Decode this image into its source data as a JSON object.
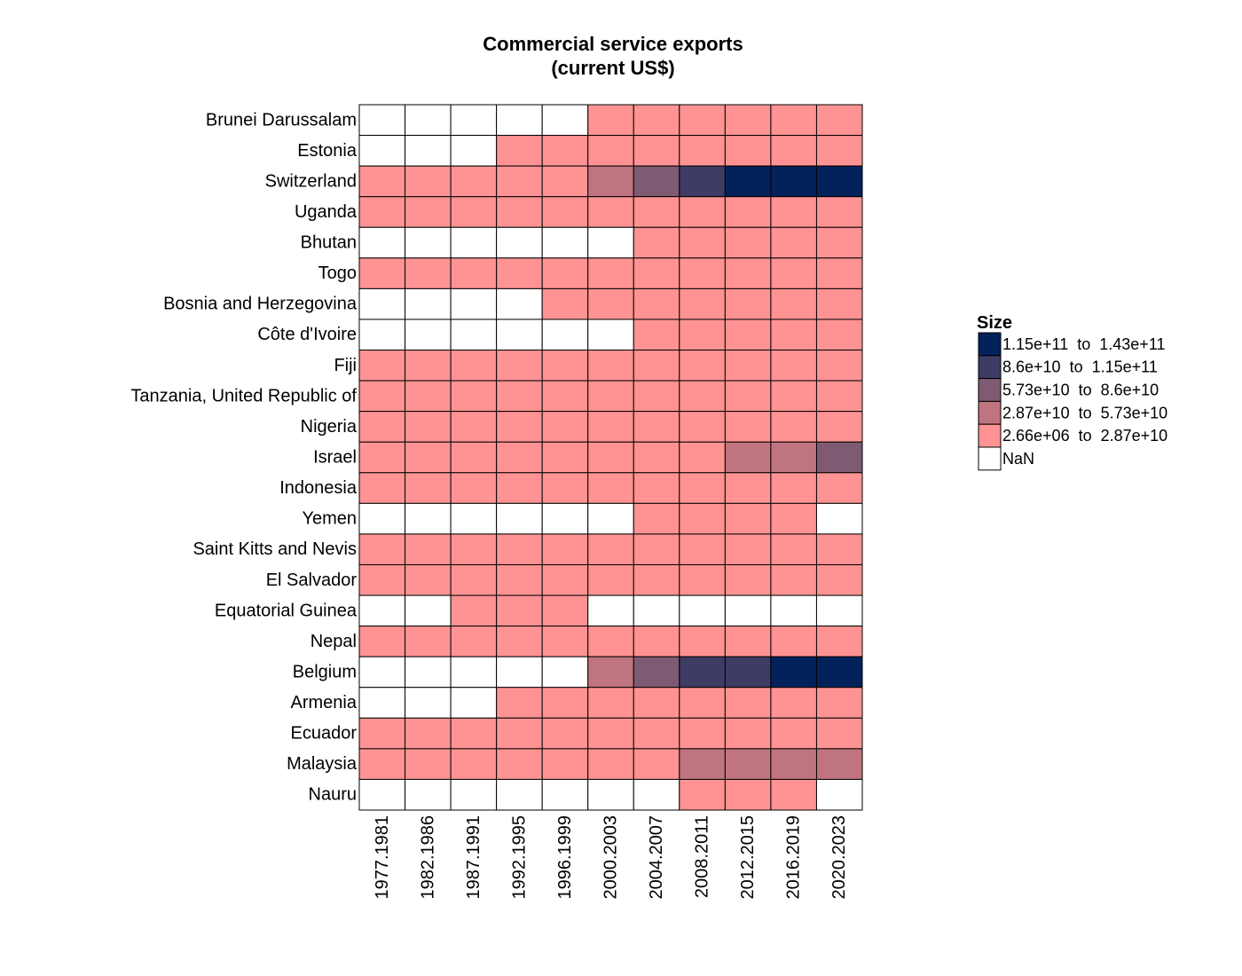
{
  "chart_data": {
    "type": "heatmap",
    "title": "Commercial service exports",
    "subtitle": "(current US$)",
    "rows": [
      "Brunei Darussalam",
      "Estonia",
      "Switzerland",
      "Uganda",
      "Bhutan",
      "Togo",
      "Bosnia and Herzegovina",
      "Côte d'Ivoire",
      "Fiji",
      "Tanzania, United Republic of",
      "Nigeria",
      "Israel",
      "Indonesia",
      "Yemen",
      "Saint Kitts and Nevis",
      "El Salvador",
      "Equatorial Guinea",
      "Nepal",
      "Belgium",
      "Armenia",
      "Ecuador",
      "Malaysia",
      "Nauru"
    ],
    "columns": [
      "1977.1981",
      "1982.1986",
      "1987.1991",
      "1992.1995",
      "1996.1999",
      "2000.2003",
      "2004.2007",
      "2008.2011",
      "2012.2015",
      "2016.2019",
      "2020.2023"
    ],
    "bin_index_note": "0 = 2.66e+06 to 2.87e+10, 1 = 2.87e+10 to 5.73e+10, 2 = 5.73e+10 to 8.6e+10, 3 = 8.6e+10 to 1.15e+11, 4 = 1.15e+11 to 1.43e+11, null = NaN",
    "cells": [
      [
        null,
        null,
        null,
        null,
        null,
        0,
        0,
        0,
        0,
        0,
        0
      ],
      [
        null,
        null,
        null,
        0,
        0,
        0,
        0,
        0,
        0,
        0,
        0
      ],
      [
        0,
        0,
        0,
        0,
        0,
        1,
        2,
        3,
        4,
        4,
        4
      ],
      [
        0,
        0,
        0,
        0,
        0,
        0,
        0,
        0,
        0,
        0,
        0
      ],
      [
        null,
        null,
        null,
        null,
        null,
        null,
        0,
        0,
        0,
        0,
        0
      ],
      [
        0,
        0,
        0,
        0,
        0,
        0,
        0,
        0,
        0,
        0,
        0
      ],
      [
        null,
        null,
        null,
        null,
        0,
        0,
        0,
        0,
        0,
        0,
        0
      ],
      [
        null,
        null,
        null,
        null,
        null,
        null,
        0,
        0,
        0,
        0,
        0
      ],
      [
        0,
        0,
        0,
        0,
        0,
        0,
        0,
        0,
        0,
        0,
        0
      ],
      [
        0,
        0,
        0,
        0,
        0,
        0,
        0,
        0,
        0,
        0,
        0
      ],
      [
        0,
        0,
        0,
        0,
        0,
        0,
        0,
        0,
        0,
        0,
        0
      ],
      [
        0,
        0,
        0,
        0,
        0,
        0,
        0,
        0,
        1,
        1,
        2
      ],
      [
        0,
        0,
        0,
        0,
        0,
        0,
        0,
        0,
        0,
        0,
        0
      ],
      [
        null,
        null,
        null,
        null,
        null,
        null,
        0,
        0,
        0,
        0,
        null
      ],
      [
        0,
        0,
        0,
        0,
        0,
        0,
        0,
        0,
        0,
        0,
        0
      ],
      [
        0,
        0,
        0,
        0,
        0,
        0,
        0,
        0,
        0,
        0,
        0
      ],
      [
        null,
        null,
        0,
        0,
        0,
        null,
        null,
        null,
        null,
        null,
        null
      ],
      [
        0,
        0,
        0,
        0,
        0,
        0,
        0,
        0,
        0,
        0,
        0
      ],
      [
        null,
        null,
        null,
        null,
        null,
        1,
        2,
        3,
        3,
        4,
        4
      ],
      [
        null,
        null,
        null,
        0,
        0,
        0,
        0,
        0,
        0,
        0,
        0
      ],
      [
        0,
        0,
        0,
        0,
        0,
        0,
        0,
        0,
        0,
        0,
        0
      ],
      [
        0,
        0,
        0,
        0,
        0,
        0,
        0,
        1,
        1,
        1,
        1
      ],
      [
        null,
        null,
        null,
        null,
        null,
        null,
        null,
        0,
        0,
        0,
        null
      ]
    ],
    "legend": {
      "title": "Size",
      "entries": [
        {
          "label": "1.15e+11  to  1.43e+11",
          "color": "#03215b"
        },
        {
          "label": "8.6e+10  to  1.15e+11",
          "color": "#3e3b64"
        },
        {
          "label": "5.73e+10  to  8.6e+10",
          "color": "#7f5a73"
        },
        {
          "label": "2.87e+10  to  5.73e+10",
          "color": "#c07480"
        },
        {
          "label": "2.66e+06  to  2.87e+10",
          "color": "#ff9393"
        },
        {
          "label": "NaN",
          "color": "#ffffff"
        }
      ]
    },
    "bin_colors": [
      "#ff9393",
      "#c07480",
      "#7f5a73",
      "#3e3b64",
      "#03215b"
    ],
    "nan_color": "#ffffff"
  }
}
